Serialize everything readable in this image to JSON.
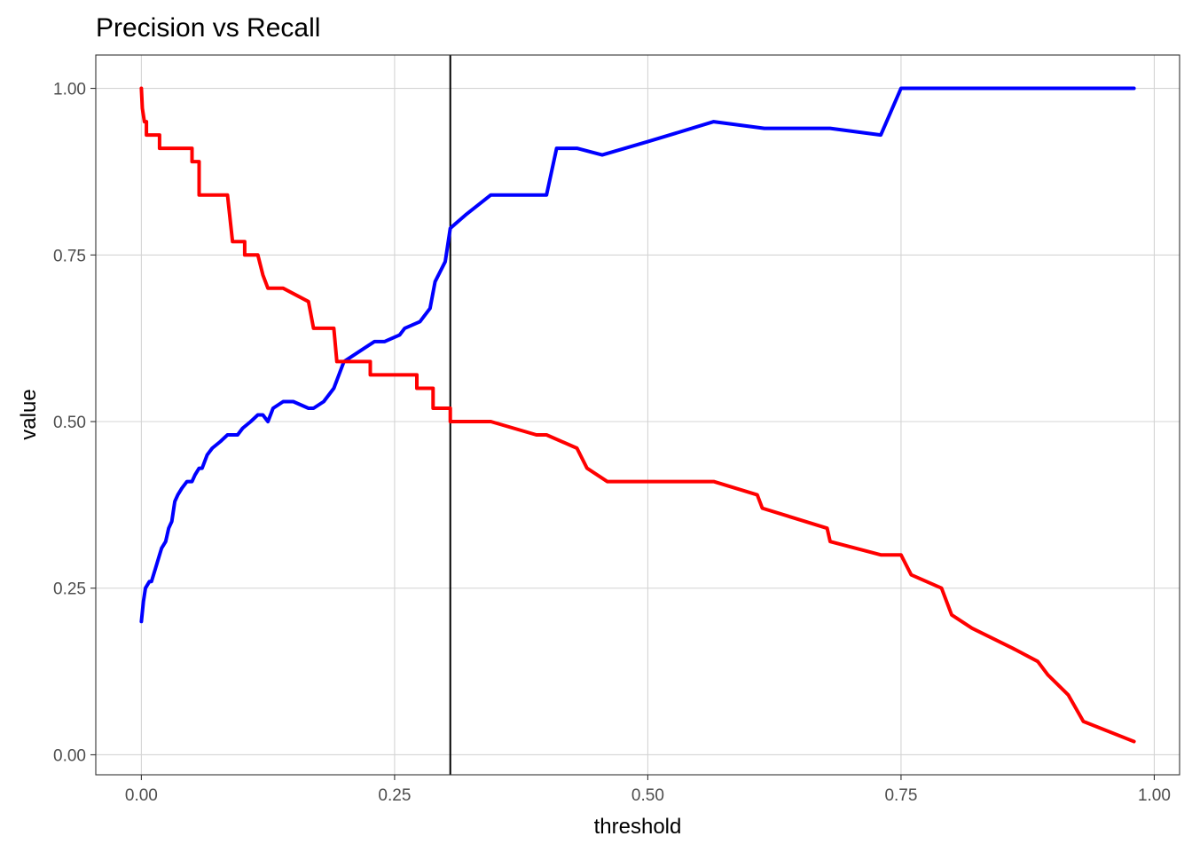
{
  "chart_data": {
    "type": "line",
    "title": "Precision vs Recall",
    "xlabel": "threshold",
    "ylabel": "value",
    "xlim": [
      -0.045,
      1.025
    ],
    "ylim": [
      -0.03,
      1.05
    ],
    "x_ticks": [
      0.0,
      0.25,
      0.5,
      0.75,
      1.0
    ],
    "x_tick_labels": [
      "0.00",
      "0.25",
      "0.50",
      "0.75",
      "1.00"
    ],
    "y_ticks": [
      0.0,
      0.25,
      0.5,
      0.75,
      1.0
    ],
    "y_tick_labels": [
      "0.00",
      "0.25",
      "0.50",
      "0.75",
      "1.00"
    ],
    "grid": true,
    "vline": {
      "x": 0.305,
      "color": "#000000"
    },
    "series": [
      {
        "color": "#0000ff",
        "points": [
          [
            0.0,
            0.2
          ],
          [
            0.002,
            0.23
          ],
          [
            0.004,
            0.25
          ],
          [
            0.008,
            0.26
          ],
          [
            0.01,
            0.26
          ],
          [
            0.014,
            0.28
          ],
          [
            0.018,
            0.3
          ],
          [
            0.02,
            0.31
          ],
          [
            0.024,
            0.32
          ],
          [
            0.027,
            0.34
          ],
          [
            0.03,
            0.35
          ],
          [
            0.033,
            0.38
          ],
          [
            0.036,
            0.39
          ],
          [
            0.04,
            0.4
          ],
          [
            0.045,
            0.41
          ],
          [
            0.05,
            0.41
          ],
          [
            0.053,
            0.42
          ],
          [
            0.057,
            0.43
          ],
          [
            0.06,
            0.43
          ],
          [
            0.065,
            0.45
          ],
          [
            0.07,
            0.46
          ],
          [
            0.078,
            0.47
          ],
          [
            0.085,
            0.48
          ],
          [
            0.09,
            0.48
          ],
          [
            0.095,
            0.48
          ],
          [
            0.1,
            0.49
          ],
          [
            0.108,
            0.5
          ],
          [
            0.115,
            0.51
          ],
          [
            0.12,
            0.51
          ],
          [
            0.125,
            0.5
          ],
          [
            0.13,
            0.52
          ],
          [
            0.14,
            0.53
          ],
          [
            0.15,
            0.53
          ],
          [
            0.165,
            0.52
          ],
          [
            0.17,
            0.52
          ],
          [
            0.18,
            0.53
          ],
          [
            0.19,
            0.55
          ],
          [
            0.195,
            0.57
          ],
          [
            0.2,
            0.59
          ],
          [
            0.22,
            0.61
          ],
          [
            0.23,
            0.62
          ],
          [
            0.24,
            0.62
          ],
          [
            0.255,
            0.63
          ],
          [
            0.26,
            0.64
          ],
          [
            0.275,
            0.65
          ],
          [
            0.285,
            0.67
          ],
          [
            0.29,
            0.71
          ],
          [
            0.3,
            0.74
          ],
          [
            0.305,
            0.79
          ],
          [
            0.32,
            0.81
          ],
          [
            0.345,
            0.84
          ],
          [
            0.38,
            0.84
          ],
          [
            0.4,
            0.84
          ],
          [
            0.41,
            0.91
          ],
          [
            0.43,
            0.91
          ],
          [
            0.455,
            0.9
          ],
          [
            0.5,
            0.92
          ],
          [
            0.565,
            0.95
          ],
          [
            0.615,
            0.94
          ],
          [
            0.68,
            0.94
          ],
          [
            0.73,
            0.93
          ],
          [
            0.75,
            1.0
          ],
          [
            0.98,
            1.0
          ]
        ]
      },
      {
        "color": "#ff0000",
        "points": [
          [
            0.0,
            1.0
          ],
          [
            0.001,
            0.97
          ],
          [
            0.003,
            0.95
          ],
          [
            0.005,
            0.95
          ],
          [
            0.005,
            0.93
          ],
          [
            0.018,
            0.93
          ],
          [
            0.018,
            0.91
          ],
          [
            0.05,
            0.91
          ],
          [
            0.05,
            0.89
          ],
          [
            0.057,
            0.89
          ],
          [
            0.057,
            0.84
          ],
          [
            0.085,
            0.84
          ],
          [
            0.09,
            0.77
          ],
          [
            0.102,
            0.77
          ],
          [
            0.102,
            0.75
          ],
          [
            0.115,
            0.75
          ],
          [
            0.12,
            0.72
          ],
          [
            0.125,
            0.7
          ],
          [
            0.14,
            0.7
          ],
          [
            0.165,
            0.68
          ],
          [
            0.17,
            0.64
          ],
          [
            0.19,
            0.64
          ],
          [
            0.193,
            0.59
          ],
          [
            0.226,
            0.59
          ],
          [
            0.226,
            0.57
          ],
          [
            0.272,
            0.57
          ],
          [
            0.272,
            0.55
          ],
          [
            0.288,
            0.55
          ],
          [
            0.288,
            0.52
          ],
          [
            0.305,
            0.52
          ],
          [
            0.305,
            0.5
          ],
          [
            0.345,
            0.5
          ],
          [
            0.39,
            0.48
          ],
          [
            0.4,
            0.48
          ],
          [
            0.43,
            0.46
          ],
          [
            0.44,
            0.43
          ],
          [
            0.46,
            0.41
          ],
          [
            0.565,
            0.41
          ],
          [
            0.608,
            0.39
          ],
          [
            0.613,
            0.37
          ],
          [
            0.677,
            0.34
          ],
          [
            0.68,
            0.32
          ],
          [
            0.73,
            0.3
          ],
          [
            0.75,
            0.3
          ],
          [
            0.76,
            0.27
          ],
          [
            0.79,
            0.25
          ],
          [
            0.8,
            0.21
          ],
          [
            0.82,
            0.19
          ],
          [
            0.86,
            0.16
          ],
          [
            0.885,
            0.14
          ],
          [
            0.895,
            0.12
          ],
          [
            0.915,
            0.09
          ],
          [
            0.93,
            0.05
          ],
          [
            0.98,
            0.02
          ]
        ]
      }
    ]
  }
}
